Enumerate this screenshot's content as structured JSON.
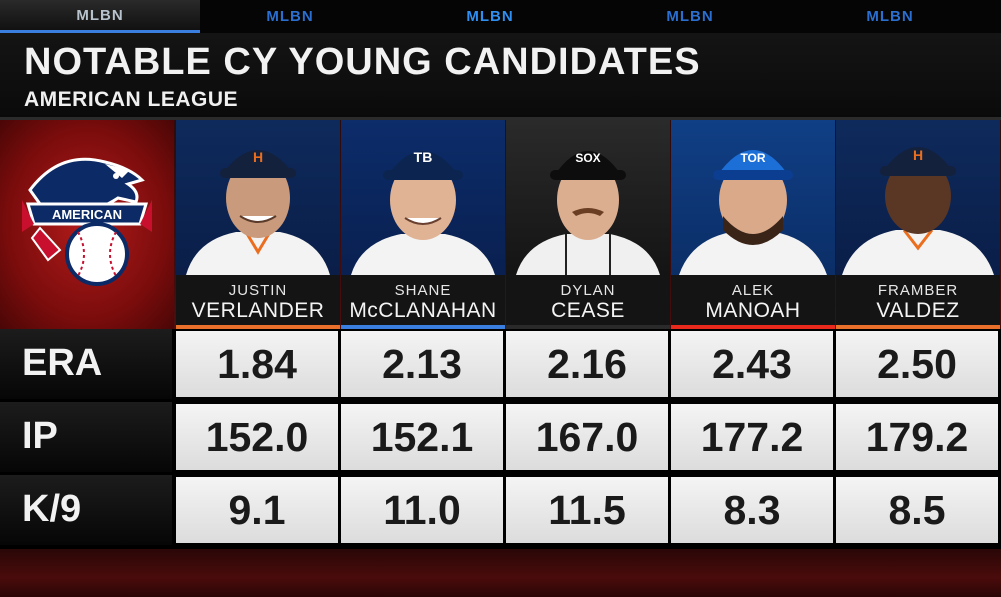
{
  "network": {
    "tabs": [
      {
        "label": "MLBN"
      },
      {
        "label": "MLBN"
      },
      {
        "label": "MLBN"
      },
      {
        "label": "MLBN"
      },
      {
        "label": "MLBN"
      }
    ]
  },
  "graphic": {
    "title": "NOTABLE CY YOUNG CANDIDATES",
    "subtitle": "AMERICAN LEAGUE",
    "league_logo_text": "AMERICAN"
  },
  "players": [
    {
      "first": "JUSTIN",
      "last": "VERLANDER",
      "cap_mark": "H",
      "team_color": "#002d62",
      "accent": "#eb6e1f"
    },
    {
      "first": "SHANE",
      "last": "McCLANAHAN",
      "cap_mark": "TB",
      "team_color": "#092c5c",
      "accent": "#8fbce6"
    },
    {
      "first": "DYLAN",
      "last": "CEASE",
      "cap_mark": "SOX",
      "team_color": "#111111",
      "accent": "#c4ced4"
    },
    {
      "first": "ALEK",
      "last": "MANOAH",
      "cap_mark": "TOR",
      "team_color": "#134a8e",
      "accent": "#e8291c"
    },
    {
      "first": "FRAMBER",
      "last": "VALDEZ",
      "cap_mark": "H",
      "team_color": "#002d62",
      "accent": "#eb6e1f"
    }
  ],
  "stats": [
    {
      "label": "ERA",
      "values": [
        "1.84",
        "2.13",
        "2.16",
        "2.43",
        "2.50"
      ]
    },
    {
      "label": "IP",
      "values": [
        "152.0",
        "152.1",
        "167.0",
        "177.2",
        "179.2"
      ]
    },
    {
      "label": "K/9",
      "values": [
        "9.1",
        "11.0",
        "11.5",
        "8.3",
        "8.5"
      ]
    }
  ],
  "colors": {
    "tab_inactive": "#2a6fcf",
    "background_red": "#7a0c0c",
    "stripe_orange": "#e8702a",
    "stripe_blue": "#3a7ee0"
  }
}
